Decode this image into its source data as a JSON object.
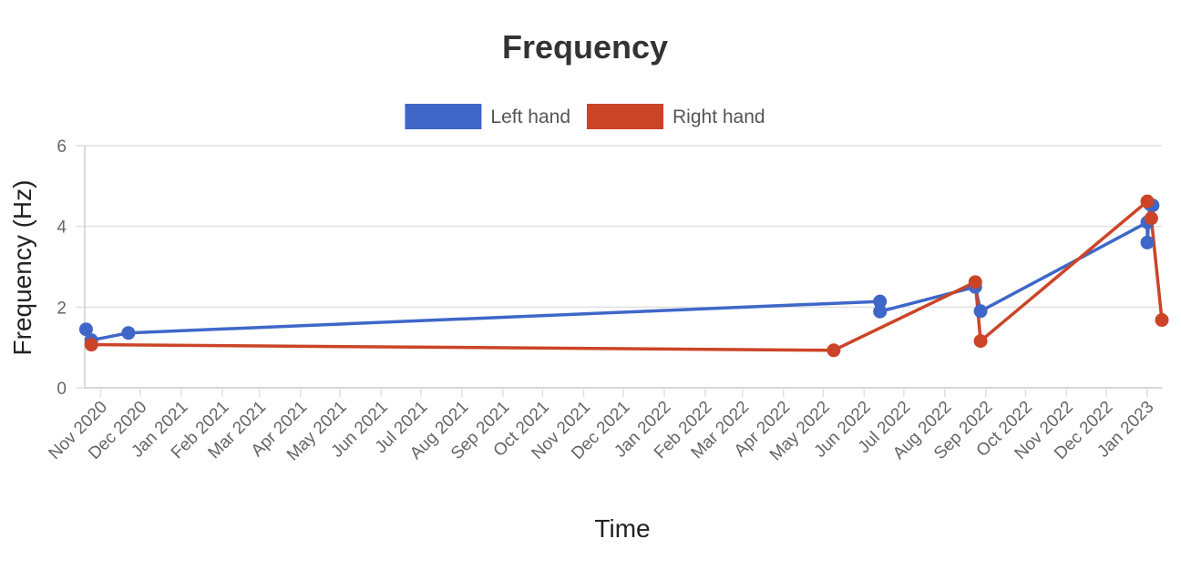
{
  "chart_data": {
    "type": "line",
    "title": "Frequency",
    "xlabel": "Time",
    "ylabel": "Frequency (Hz)",
    "x_axis_type": "date",
    "xlim": [
      "2020-10-20",
      "2023-01-12"
    ],
    "ylim": [
      0,
      6
    ],
    "y_ticks": [
      0,
      2,
      4,
      6
    ],
    "x_ticks": [
      {
        "date": "2020-11-01",
        "label": "Nov 2020"
      },
      {
        "date": "2020-12-01",
        "label": "Dec 2020"
      },
      {
        "date": "2021-01-01",
        "label": "Jan 2021"
      },
      {
        "date": "2021-02-01",
        "label": "Feb 2021"
      },
      {
        "date": "2021-03-01",
        "label": "Mar 2021"
      },
      {
        "date": "2021-04-01",
        "label": "Apr 2021"
      },
      {
        "date": "2021-05-01",
        "label": "May 2021"
      },
      {
        "date": "2021-06-01",
        "label": "Jun 2021"
      },
      {
        "date": "2021-07-01",
        "label": "Jul 2021"
      },
      {
        "date": "2021-08-01",
        "label": "Aug 2021"
      },
      {
        "date": "2021-09-01",
        "label": "Sep 2021"
      },
      {
        "date": "2021-10-01",
        "label": "Oct 2021"
      },
      {
        "date": "2021-11-01",
        "label": "Nov 2021"
      },
      {
        "date": "2021-12-01",
        "label": "Dec 2021"
      },
      {
        "date": "2022-01-01",
        "label": "Jan 2022"
      },
      {
        "date": "2022-02-01",
        "label": "Feb 2022"
      },
      {
        "date": "2022-03-01",
        "label": "Mar 2022"
      },
      {
        "date": "2022-04-01",
        "label": "Apr 2022"
      },
      {
        "date": "2022-05-01",
        "label": "May 2022"
      },
      {
        "date": "2022-06-01",
        "label": "Jun 2022"
      },
      {
        "date": "2022-07-01",
        "label": "Jul 2022"
      },
      {
        "date": "2022-08-01",
        "label": "Aug 2022"
      },
      {
        "date": "2022-09-01",
        "label": "Sep 2022"
      },
      {
        "date": "2022-10-01",
        "label": "Oct 2022"
      },
      {
        "date": "2022-11-01",
        "label": "Nov 2022"
      },
      {
        "date": "2022-12-01",
        "label": "Dec 2022"
      },
      {
        "date": "2023-01-01",
        "label": "Jan 2023"
      }
    ],
    "grid": true,
    "legend_position": "top",
    "series": [
      {
        "name": "Left hand",
        "color": "#3e67c8",
        "points": [
          {
            "x": "2020-10-21",
            "y": 1.45
          },
          {
            "x": "2020-10-25",
            "y": 1.18
          },
          {
            "x": "2020-11-22",
            "y": 1.36
          },
          {
            "x": "2022-06-13",
            "y": 2.14
          },
          {
            "x": "2022-06-13",
            "y": 1.89
          },
          {
            "x": "2022-08-24",
            "y": 2.5
          },
          {
            "x": "2022-08-28",
            "y": 1.9
          },
          {
            "x": "2023-01-01",
            "y": 4.1
          },
          {
            "x": "2023-01-01",
            "y": 3.6
          },
          {
            "x": "2023-01-03",
            "y": 4.55
          },
          {
            "x": "2023-01-05",
            "y": 4.52
          }
        ]
      },
      {
        "name": "Right hand",
        "color": "#cc4427",
        "points": [
          {
            "x": "2020-10-25",
            "y": 1.07
          },
          {
            "x": "2022-05-09",
            "y": 0.93
          },
          {
            "x": "2022-08-24",
            "y": 2.62
          },
          {
            "x": "2022-08-28",
            "y": 1.16
          },
          {
            "x": "2023-01-01",
            "y": 4.62
          },
          {
            "x": "2023-01-04",
            "y": 4.2
          },
          {
            "x": "2023-01-12",
            "y": 1.68
          }
        ]
      }
    ]
  }
}
